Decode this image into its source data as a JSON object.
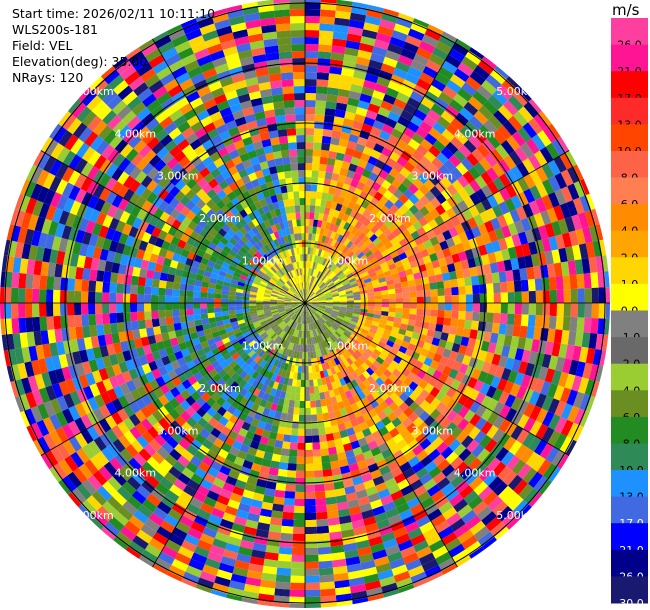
{
  "meta": {
    "start_time": "Start time: 2026/02/11 10:11:10",
    "instrument": "WLS200s-181",
    "field": "Field: VEL",
    "elevation": "Elevation(deg): 35.00",
    "nrays": "NRays: 120"
  },
  "colorbar": {
    "unit": "m/s",
    "ticks": [
      "26.0",
      "21.0",
      "17.0",
      "13.0",
      "10.0",
      "8.0",
      "6.0",
      "4.0",
      "2.0",
      "1.0",
      "0.0",
      "-1.0",
      "-2.0",
      "-4.0",
      "-6.0",
      "-8.0",
      "-10.0",
      "-13.0",
      "-17.0",
      "-21.0",
      "-26.0",
      "-30.0"
    ],
    "colors": [
      "#ff3fa0",
      "#ff1493",
      "#ff0000",
      "#ff2a2a",
      "#ff4500",
      "#ff6347",
      "#ff7f50",
      "#ff8c00",
      "#ffa500",
      "#ffd700",
      "#ffff00",
      "#808080",
      "#696969",
      "#9acd32",
      "#6b8e23",
      "#228b22",
      "#2e8b57",
      "#1e90ff",
      "#4169e1",
      "#0000ff",
      "#00008b",
      "#191970"
    ]
  },
  "ring_labels": [
    "1.00km",
    "2.00km",
    "3.00km",
    "4.00km",
    "5.00km"
  ],
  "chart_data": {
    "type": "heatmap",
    "field": "VEL",
    "nrays": 120,
    "range_rings_km": [
      1,
      2,
      3,
      4,
      5
    ],
    "colorbar_levels_m_s": [
      26,
      21,
      17,
      13,
      10,
      8,
      6,
      4,
      2,
      1,
      0,
      -1,
      -2,
      -4,
      -6,
      -8,
      -10,
      -13,
      -17,
      -21,
      -26,
      -30
    ]
  }
}
